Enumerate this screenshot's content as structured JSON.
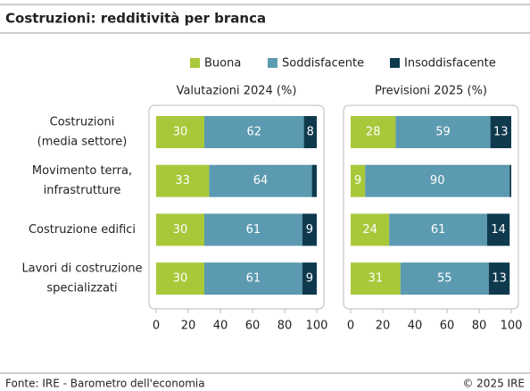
{
  "title": "Costruzioni: redditività per branca",
  "footer": {
    "source": "Fonte: IRE - Barometro dell'economia",
    "copyright": "© 2025 IRE"
  },
  "chart_data": [
    {
      "type": "stacked-bar",
      "title": "Valutazioni 2024 (%)",
      "categories": [
        [
          "Costruzioni",
          "(media settore)"
        ],
        [
          "Movimento terra,",
          "infrastrutture"
        ],
        [
          "Costruzione edifici"
        ],
        [
          "Lavori di costruzione",
          "specializzati"
        ]
      ],
      "series": [
        {
          "name": "Buona",
          "color": "#a8c83a",
          "values": [
            30,
            33,
            30,
            30
          ]
        },
        {
          "name": "Soddisfacente",
          "color": "#5b9ab0",
          "values": [
            62,
            64,
            61,
            61
          ]
        },
        {
          "name": "Insoddisfacente",
          "color": "#0f3a4e",
          "values": [
            8,
            3,
            9,
            9
          ]
        }
      ],
      "xlim": [
        0,
        100
      ],
      "xticks": [
        0,
        20,
        40,
        60,
        80,
        100
      ]
    },
    {
      "type": "stacked-bar",
      "title": "Previsioni 2025 (%)",
      "series": [
        {
          "color": "#a8c83a",
          "values": [
            28,
            9,
            24,
            31
          ]
        },
        {
          "color": "#5b9ab0",
          "values": [
            59,
            90,
            61,
            55
          ]
        },
        {
          "color": "#0f3a4e",
          "values": [
            13,
            1,
            14,
            13
          ]
        }
      ],
      "xlim": [
        0,
        100
      ],
      "xticks": [
        0,
        20,
        40,
        60,
        80,
        100
      ]
    }
  ]
}
